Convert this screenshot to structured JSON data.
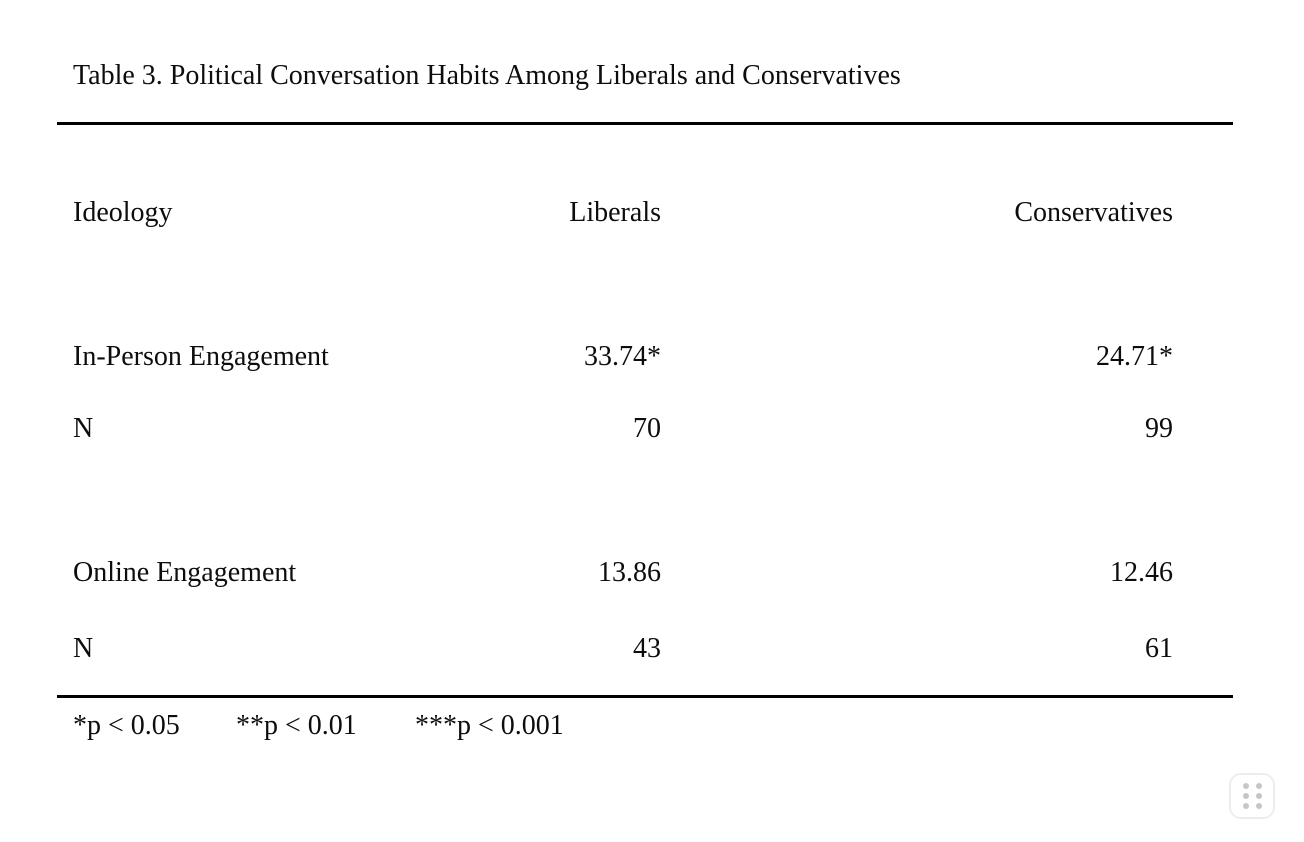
{
  "page": {
    "background_color": "#ffffff",
    "text_color": "#0d0d0d",
    "rule_color": "#000000"
  },
  "table": {
    "title": "Table 3. Political Conversation Habits Among Liberals and Conservatives",
    "header": {
      "col1": "Ideology",
      "col2": "Liberals",
      "col3": "Conservatives"
    },
    "rows": [
      {
        "label": "In-Person Engagement",
        "liberals": "33.74*",
        "conservatives": "24.71*"
      },
      {
        "label": "N",
        "liberals": "70",
        "conservatives": "99"
      },
      {
        "label": "Online Engagement",
        "liberals": "13.86",
        "conservatives": "12.46"
      },
      {
        "label": "N",
        "liberals": "43",
        "conservatives": "61"
      }
    ],
    "notes": [
      {
        "text": "*p < 0.05"
      },
      {
        "text": "**p < 0.01"
      },
      {
        "text": "***p < 0.001"
      }
    ]
  },
  "chart_data": {
    "type": "table",
    "title": "Table 3. Political Conversation Habits Among Liberals and Conservatives",
    "columns": [
      "Ideology",
      "Liberals",
      "Conservatives"
    ],
    "rows": [
      [
        "In-Person Engagement",
        "33.74*",
        "24.71*"
      ],
      [
        "N",
        "70",
        "99"
      ],
      [
        "Online Engagement",
        "13.86",
        "12.46"
      ],
      [
        "N",
        "43",
        "61"
      ]
    ],
    "notes": [
      "*p < 0.05",
      "**p < 0.01",
      "***p < 0.001"
    ]
  },
  "widgets": {
    "drag_handle": {
      "icon": "grid-of-dots"
    }
  }
}
